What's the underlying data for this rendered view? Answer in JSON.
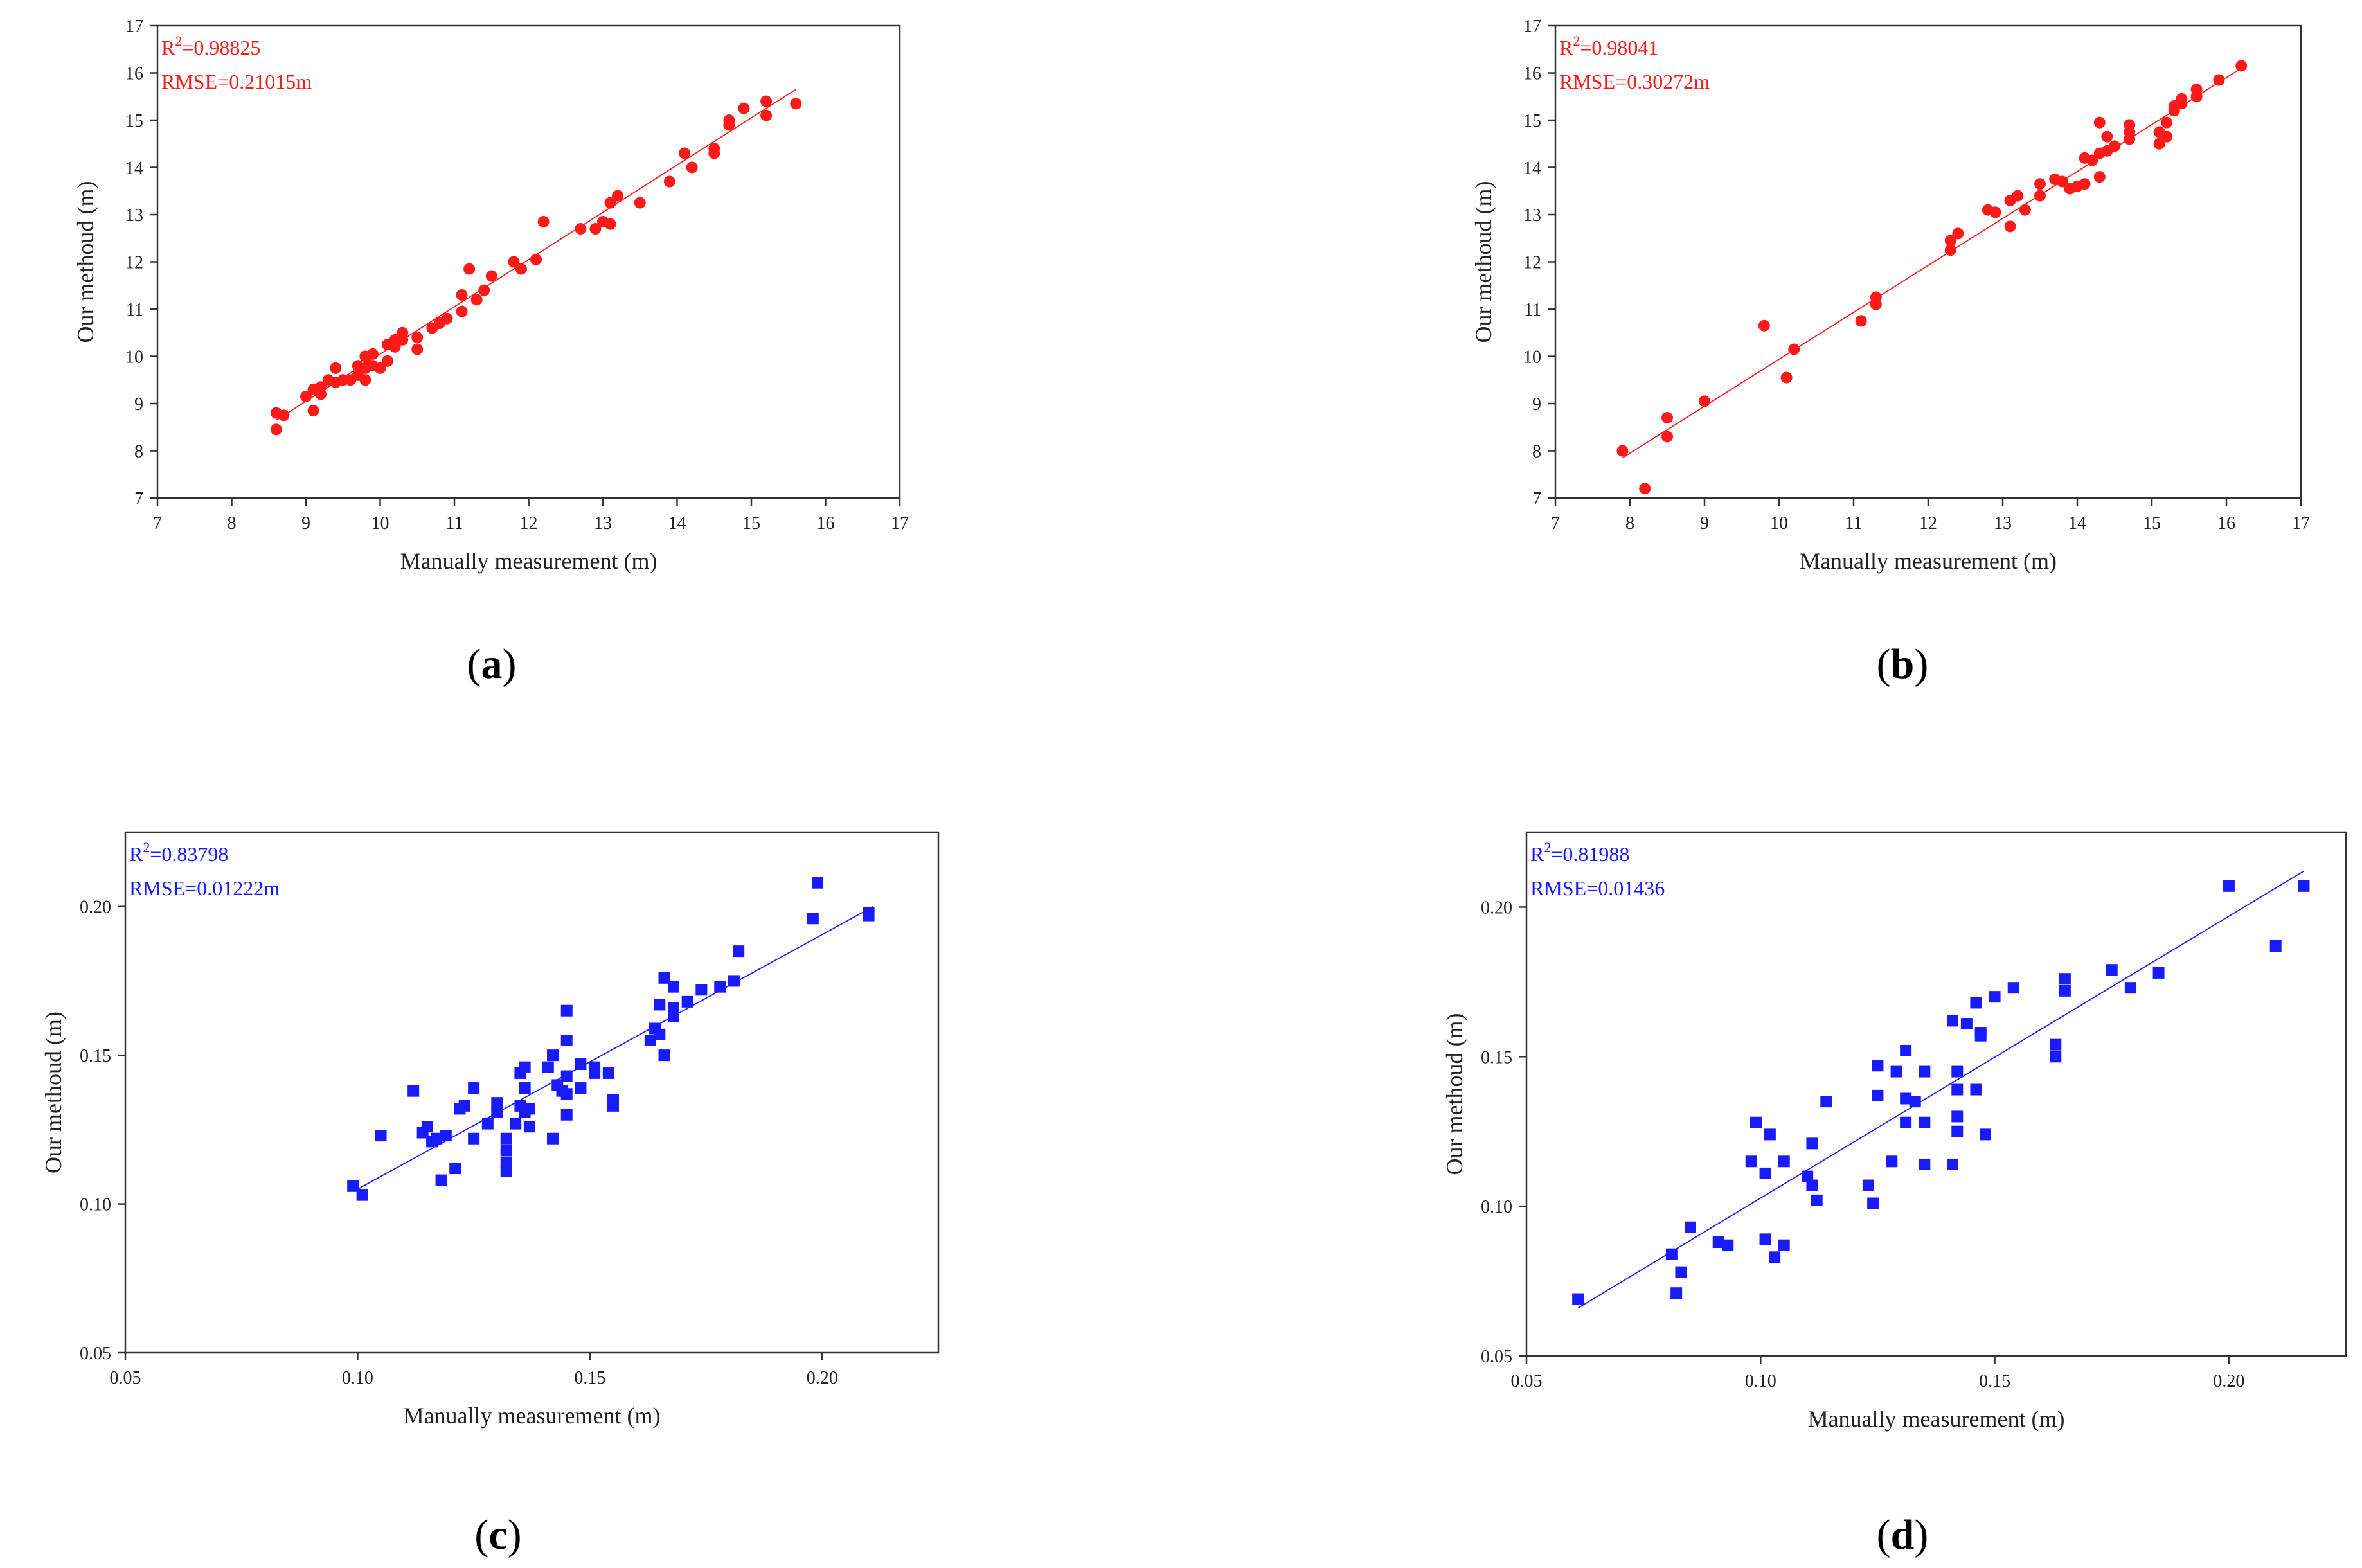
{
  "figure": {
    "colors": {
      "red": "#ff1a1a",
      "blue": "#1a1aff",
      "axis": "#333333"
    }
  },
  "chart_data": [
    {
      "panel": "a",
      "label": "a",
      "type": "scatter",
      "marker": "circle",
      "color": "#ff1a1a",
      "xlabel": "Manually measurement (m)",
      "ylabel": "Our methoud (m)",
      "xlim": [
        7,
        17
      ],
      "ylim": [
        7,
        17
      ],
      "xticks": [
        "7",
        "8",
        "9",
        "10",
        "11",
        "12",
        "13",
        "14",
        "15",
        "16",
        "17"
      ],
      "yticks": [
        "7",
        "8",
        "9",
        "10",
        "11",
        "12",
        "13",
        "14",
        "15",
        "16",
        "17"
      ],
      "r2_prefix": "R",
      "r2_sup": "2",
      "r2_value": "=0.98825",
      "rmse": "RMSE=0.21015m",
      "fit_line": [
        [
          8.6,
          8.65
        ],
        [
          15.6,
          15.65
        ]
      ],
      "points": [
        [
          8.6,
          8.45
        ],
        [
          8.6,
          8.8
        ],
        [
          8.7,
          8.75
        ],
        [
          9.0,
          9.15
        ],
        [
          9.1,
          8.85
        ],
        [
          9.1,
          9.3
        ],
        [
          9.2,
          9.2
        ],
        [
          9.2,
          9.35
        ],
        [
          9.3,
          9.5
        ],
        [
          9.4,
          9.45
        ],
        [
          9.4,
          9.75
        ],
        [
          9.5,
          9.5
        ],
        [
          9.6,
          9.5
        ],
        [
          9.7,
          9.6
        ],
        [
          9.7,
          9.8
        ],
        [
          9.8,
          9.5
        ],
        [
          9.8,
          9.75
        ],
        [
          9.8,
          10.0
        ],
        [
          9.9,
          9.8
        ],
        [
          9.9,
          10.05
        ],
        [
          10.0,
          9.75
        ],
        [
          10.1,
          10.25
        ],
        [
          10.1,
          9.9
        ],
        [
          10.2,
          10.2
        ],
        [
          10.2,
          10.35
        ],
        [
          10.3,
          10.35
        ],
        [
          10.3,
          10.5
        ],
        [
          10.5,
          10.4
        ],
        [
          10.5,
          10.15
        ],
        [
          10.7,
          10.6
        ],
        [
          10.8,
          10.7
        ],
        [
          10.9,
          10.8
        ],
        [
          11.1,
          10.95
        ],
        [
          11.1,
          11.3
        ],
        [
          11.2,
          11.85
        ],
        [
          11.3,
          11.2
        ],
        [
          11.4,
          11.4
        ],
        [
          11.5,
          11.7
        ],
        [
          11.8,
          12.0
        ],
        [
          11.9,
          11.85
        ],
        [
          12.1,
          12.05
        ],
        [
          12.2,
          12.85
        ],
        [
          12.7,
          12.7
        ],
        [
          12.9,
          12.7
        ],
        [
          13.0,
          12.85
        ],
        [
          13.1,
          12.8
        ],
        [
          13.1,
          13.25
        ],
        [
          13.2,
          13.4
        ],
        [
          13.5,
          13.25
        ],
        [
          13.9,
          13.7
        ],
        [
          14.1,
          14.3
        ],
        [
          14.2,
          14.0
        ],
        [
          14.5,
          14.3
        ],
        [
          14.5,
          14.4
        ],
        [
          14.7,
          14.9
        ],
        [
          14.7,
          15.0
        ],
        [
          14.9,
          15.25
        ],
        [
          15.2,
          15.1
        ],
        [
          15.2,
          15.4
        ],
        [
          15.6,
          15.35
        ]
      ]
    },
    {
      "panel": "b",
      "label": "b",
      "type": "scatter",
      "marker": "circle",
      "color": "#ff1a1a",
      "xlabel": "Manually measurement (m)",
      "ylabel": "Our methoud (m)",
      "xlim": [
        7,
        17
      ],
      "ylim": [
        7,
        17
      ],
      "xticks": [
        "7",
        "8",
        "9",
        "10",
        "11",
        "12",
        "13",
        "14",
        "15",
        "16",
        "17"
      ],
      "yticks": [
        "7",
        "8",
        "9",
        "10",
        "11",
        "12",
        "13",
        "14",
        "15",
        "16",
        "17"
      ],
      "r2_prefix": "R",
      "r2_sup": "2",
      "r2_value": "=0.98041",
      "rmse": "RMSE=0.30272m",
      "fit_line": [
        [
          7.9,
          7.85
        ],
        [
          16.2,
          16.1
        ]
      ],
      "points": [
        [
          7.9,
          8.0
        ],
        [
          8.2,
          7.2
        ],
        [
          8.5,
          8.7
        ],
        [
          8.5,
          8.3
        ],
        [
          9.0,
          9.05
        ],
        [
          9.8,
          10.65
        ],
        [
          10.1,
          9.55
        ],
        [
          10.2,
          10.15
        ],
        [
          11.1,
          10.75
        ],
        [
          11.3,
          11.1
        ],
        [
          11.3,
          11.25
        ],
        [
          12.3,
          12.25
        ],
        [
          12.3,
          12.45
        ],
        [
          12.4,
          12.6
        ],
        [
          12.8,
          13.1
        ],
        [
          12.9,
          13.05
        ],
        [
          13.1,
          12.75
        ],
        [
          13.1,
          13.3
        ],
        [
          13.2,
          13.4
        ],
        [
          13.3,
          13.1
        ],
        [
          13.5,
          13.4
        ],
        [
          13.5,
          13.65
        ],
        [
          13.7,
          13.75
        ],
        [
          13.8,
          13.7
        ],
        [
          13.9,
          13.55
        ],
        [
          14.0,
          13.6
        ],
        [
          14.1,
          13.65
        ],
        [
          14.1,
          14.2
        ],
        [
          14.2,
          14.15
        ],
        [
          14.3,
          13.8
        ],
        [
          14.3,
          14.3
        ],
        [
          14.3,
          14.95
        ],
        [
          14.4,
          14.35
        ],
        [
          14.4,
          14.65
        ],
        [
          14.5,
          14.45
        ],
        [
          14.7,
          14.6
        ],
        [
          14.7,
          14.75
        ],
        [
          14.7,
          14.9
        ],
        [
          15.1,
          14.5
        ],
        [
          15.1,
          14.75
        ],
        [
          15.2,
          14.65
        ],
        [
          15.2,
          14.95
        ],
        [
          15.3,
          15.2
        ],
        [
          15.3,
          15.3
        ],
        [
          15.4,
          15.35
        ],
        [
          15.4,
          15.45
        ],
        [
          15.6,
          15.5
        ],
        [
          15.6,
          15.65
        ],
        [
          15.9,
          15.85
        ],
        [
          16.2,
          16.15
        ]
      ]
    },
    {
      "panel": "c",
      "label": "c",
      "type": "scatter",
      "marker": "square",
      "color": "#1a1aff",
      "xlabel": "Manually measurement (m)",
      "ylabel": "Our methoud (m)",
      "xlim": [
        0.05,
        0.225
      ],
      "ylim": [
        0.05,
        0.225
      ],
      "xtick_values": [
        0.05,
        0.1,
        0.15,
        0.2
      ],
      "xticks": [
        "0.05",
        "0.10",
        "0.15",
        "0.20"
      ],
      "ytick_values": [
        0.05,
        0.1,
        0.15,
        0.2
      ],
      "yticks": [
        "0.05",
        "0.10",
        "0.15",
        "0.20"
      ],
      "r2_prefix": "R",
      "r2_sup": "2",
      "r2_value": "=0.83798",
      "rmse": "RMSE=0.01222m",
      "fit_line": [
        [
          0.1,
          0.105
        ],
        [
          0.211,
          0.2
        ]
      ],
      "points": [
        [
          0.099,
          0.106
        ],
        [
          0.101,
          0.103
        ],
        [
          0.105,
          0.123
        ],
        [
          0.112,
          0.138
        ],
        [
          0.114,
          0.124
        ],
        [
          0.115,
          0.126
        ],
        [
          0.116,
          0.121
        ],
        [
          0.117,
          0.122
        ],
        [
          0.118,
          0.108
        ],
        [
          0.119,
          0.123
        ],
        [
          0.121,
          0.112
        ],
        [
          0.122,
          0.132
        ],
        [
          0.123,
          0.133
        ],
        [
          0.125,
          0.139
        ],
        [
          0.125,
          0.122
        ],
        [
          0.128,
          0.127
        ],
        [
          0.13,
          0.131
        ],
        [
          0.13,
          0.134
        ],
        [
          0.132,
          0.122
        ],
        [
          0.132,
          0.118
        ],
        [
          0.132,
          0.114
        ],
        [
          0.132,
          0.111
        ],
        [
          0.134,
          0.127
        ],
        [
          0.135,
          0.133
        ],
        [
          0.135,
          0.144
        ],
        [
          0.136,
          0.139
        ],
        [
          0.136,
          0.146
        ],
        [
          0.136,
          0.131
        ],
        [
          0.137,
          0.126
        ],
        [
          0.137,
          0.132
        ],
        [
          0.141,
          0.146
        ],
        [
          0.142,
          0.15
        ],
        [
          0.142,
          0.122
        ],
        [
          0.143,
          0.14
        ],
        [
          0.144,
          0.138
        ],
        [
          0.145,
          0.165
        ],
        [
          0.145,
          0.155
        ],
        [
          0.145,
          0.143
        ],
        [
          0.145,
          0.137
        ],
        [
          0.145,
          0.13
        ],
        [
          0.148,
          0.139
        ],
        [
          0.148,
          0.147
        ],
        [
          0.151,
          0.146
        ],
        [
          0.151,
          0.144
        ],
        [
          0.154,
          0.144
        ],
        [
          0.155,
          0.135
        ],
        [
          0.155,
          0.133
        ],
        [
          0.163,
          0.155
        ],
        [
          0.164,
          0.159
        ],
        [
          0.165,
          0.167
        ],
        [
          0.165,
          0.157
        ],
        [
          0.166,
          0.176
        ],
        [
          0.166,
          0.15
        ],
        [
          0.168,
          0.173
        ],
        [
          0.168,
          0.166
        ],
        [
          0.168,
          0.163
        ],
        [
          0.171,
          0.168
        ],
        [
          0.174,
          0.172
        ],
        [
          0.178,
          0.173
        ],
        [
          0.181,
          0.175
        ],
        [
          0.182,
          0.185
        ],
        [
          0.198,
          0.196
        ],
        [
          0.199,
          0.208
        ],
        [
          0.21,
          0.198
        ],
        [
          0.21,
          0.197
        ]
      ]
    },
    {
      "panel": "d",
      "label": "d",
      "type": "scatter",
      "marker": "square",
      "color": "#1a1aff",
      "xlabel": "Manually measurement (m)",
      "ylabel": "Our methoud (m)",
      "xlim": [
        0.05,
        0.225
      ],
      "ylim": [
        0.05,
        0.225
      ],
      "xtick_values": [
        0.05,
        0.1,
        0.15,
        0.2
      ],
      "xticks": [
        "0.05",
        "0.10",
        "0.15",
        "0.20"
      ],
      "ytick_values": [
        0.05,
        0.1,
        0.15,
        0.2
      ],
      "yticks": [
        "0.05",
        "0.10",
        "0.15",
        "0.20"
      ],
      "r2_prefix": "R",
      "r2_sup": "2",
      "r2_value": "=0.81988",
      "rmse": "RMSE=0.01436",
      "fit_line": [
        [
          0.061,
          0.066
        ],
        [
          0.216,
          0.212
        ]
      ],
      "points": [
        [
          0.061,
          0.069
        ],
        [
          0.081,
          0.084
        ],
        [
          0.082,
          0.071
        ],
        [
          0.083,
          0.078
        ],
        [
          0.085,
          0.093
        ],
        [
          0.091,
          0.088
        ],
        [
          0.093,
          0.087
        ],
        [
          0.098,
          0.115
        ],
        [
          0.099,
          0.128
        ],
        [
          0.101,
          0.111
        ],
        [
          0.101,
          0.089
        ],
        [
          0.102,
          0.124
        ],
        [
          0.103,
          0.083
        ],
        [
          0.105,
          0.115
        ],
        [
          0.105,
          0.087
        ],
        [
          0.11,
          0.11
        ],
        [
          0.111,
          0.121
        ],
        [
          0.111,
          0.107
        ],
        [
          0.112,
          0.102
        ],
        [
          0.114,
          0.135
        ],
        [
          0.123,
          0.107
        ],
        [
          0.124,
          0.101
        ],
        [
          0.125,
          0.147
        ],
        [
          0.125,
          0.137
        ],
        [
          0.128,
          0.115
        ],
        [
          0.129,
          0.145
        ],
        [
          0.131,
          0.152
        ],
        [
          0.131,
          0.136
        ],
        [
          0.131,
          0.128
        ],
        [
          0.133,
          0.135
        ],
        [
          0.135,
          0.145
        ],
        [
          0.135,
          0.128
        ],
        [
          0.135,
          0.114
        ],
        [
          0.141,
          0.162
        ],
        [
          0.141,
          0.114
        ],
        [
          0.142,
          0.145
        ],
        [
          0.142,
          0.139
        ],
        [
          0.142,
          0.13
        ],
        [
          0.142,
          0.125
        ],
        [
          0.144,
          0.161
        ],
        [
          0.146,
          0.168
        ],
        [
          0.146,
          0.139
        ],
        [
          0.147,
          0.158
        ],
        [
          0.147,
          0.157
        ],
        [
          0.148,
          0.124
        ],
        [
          0.15,
          0.17
        ],
        [
          0.154,
          0.173
        ],
        [
          0.163,
          0.154
        ],
        [
          0.163,
          0.15
        ],
        [
          0.165,
          0.176
        ],
        [
          0.165,
          0.172
        ],
        [
          0.175,
          0.179
        ],
        [
          0.179,
          0.173
        ],
        [
          0.185,
          0.178
        ],
        [
          0.2,
          0.207
        ],
        [
          0.21,
          0.187
        ],
        [
          0.216,
          0.207
        ]
      ]
    }
  ]
}
